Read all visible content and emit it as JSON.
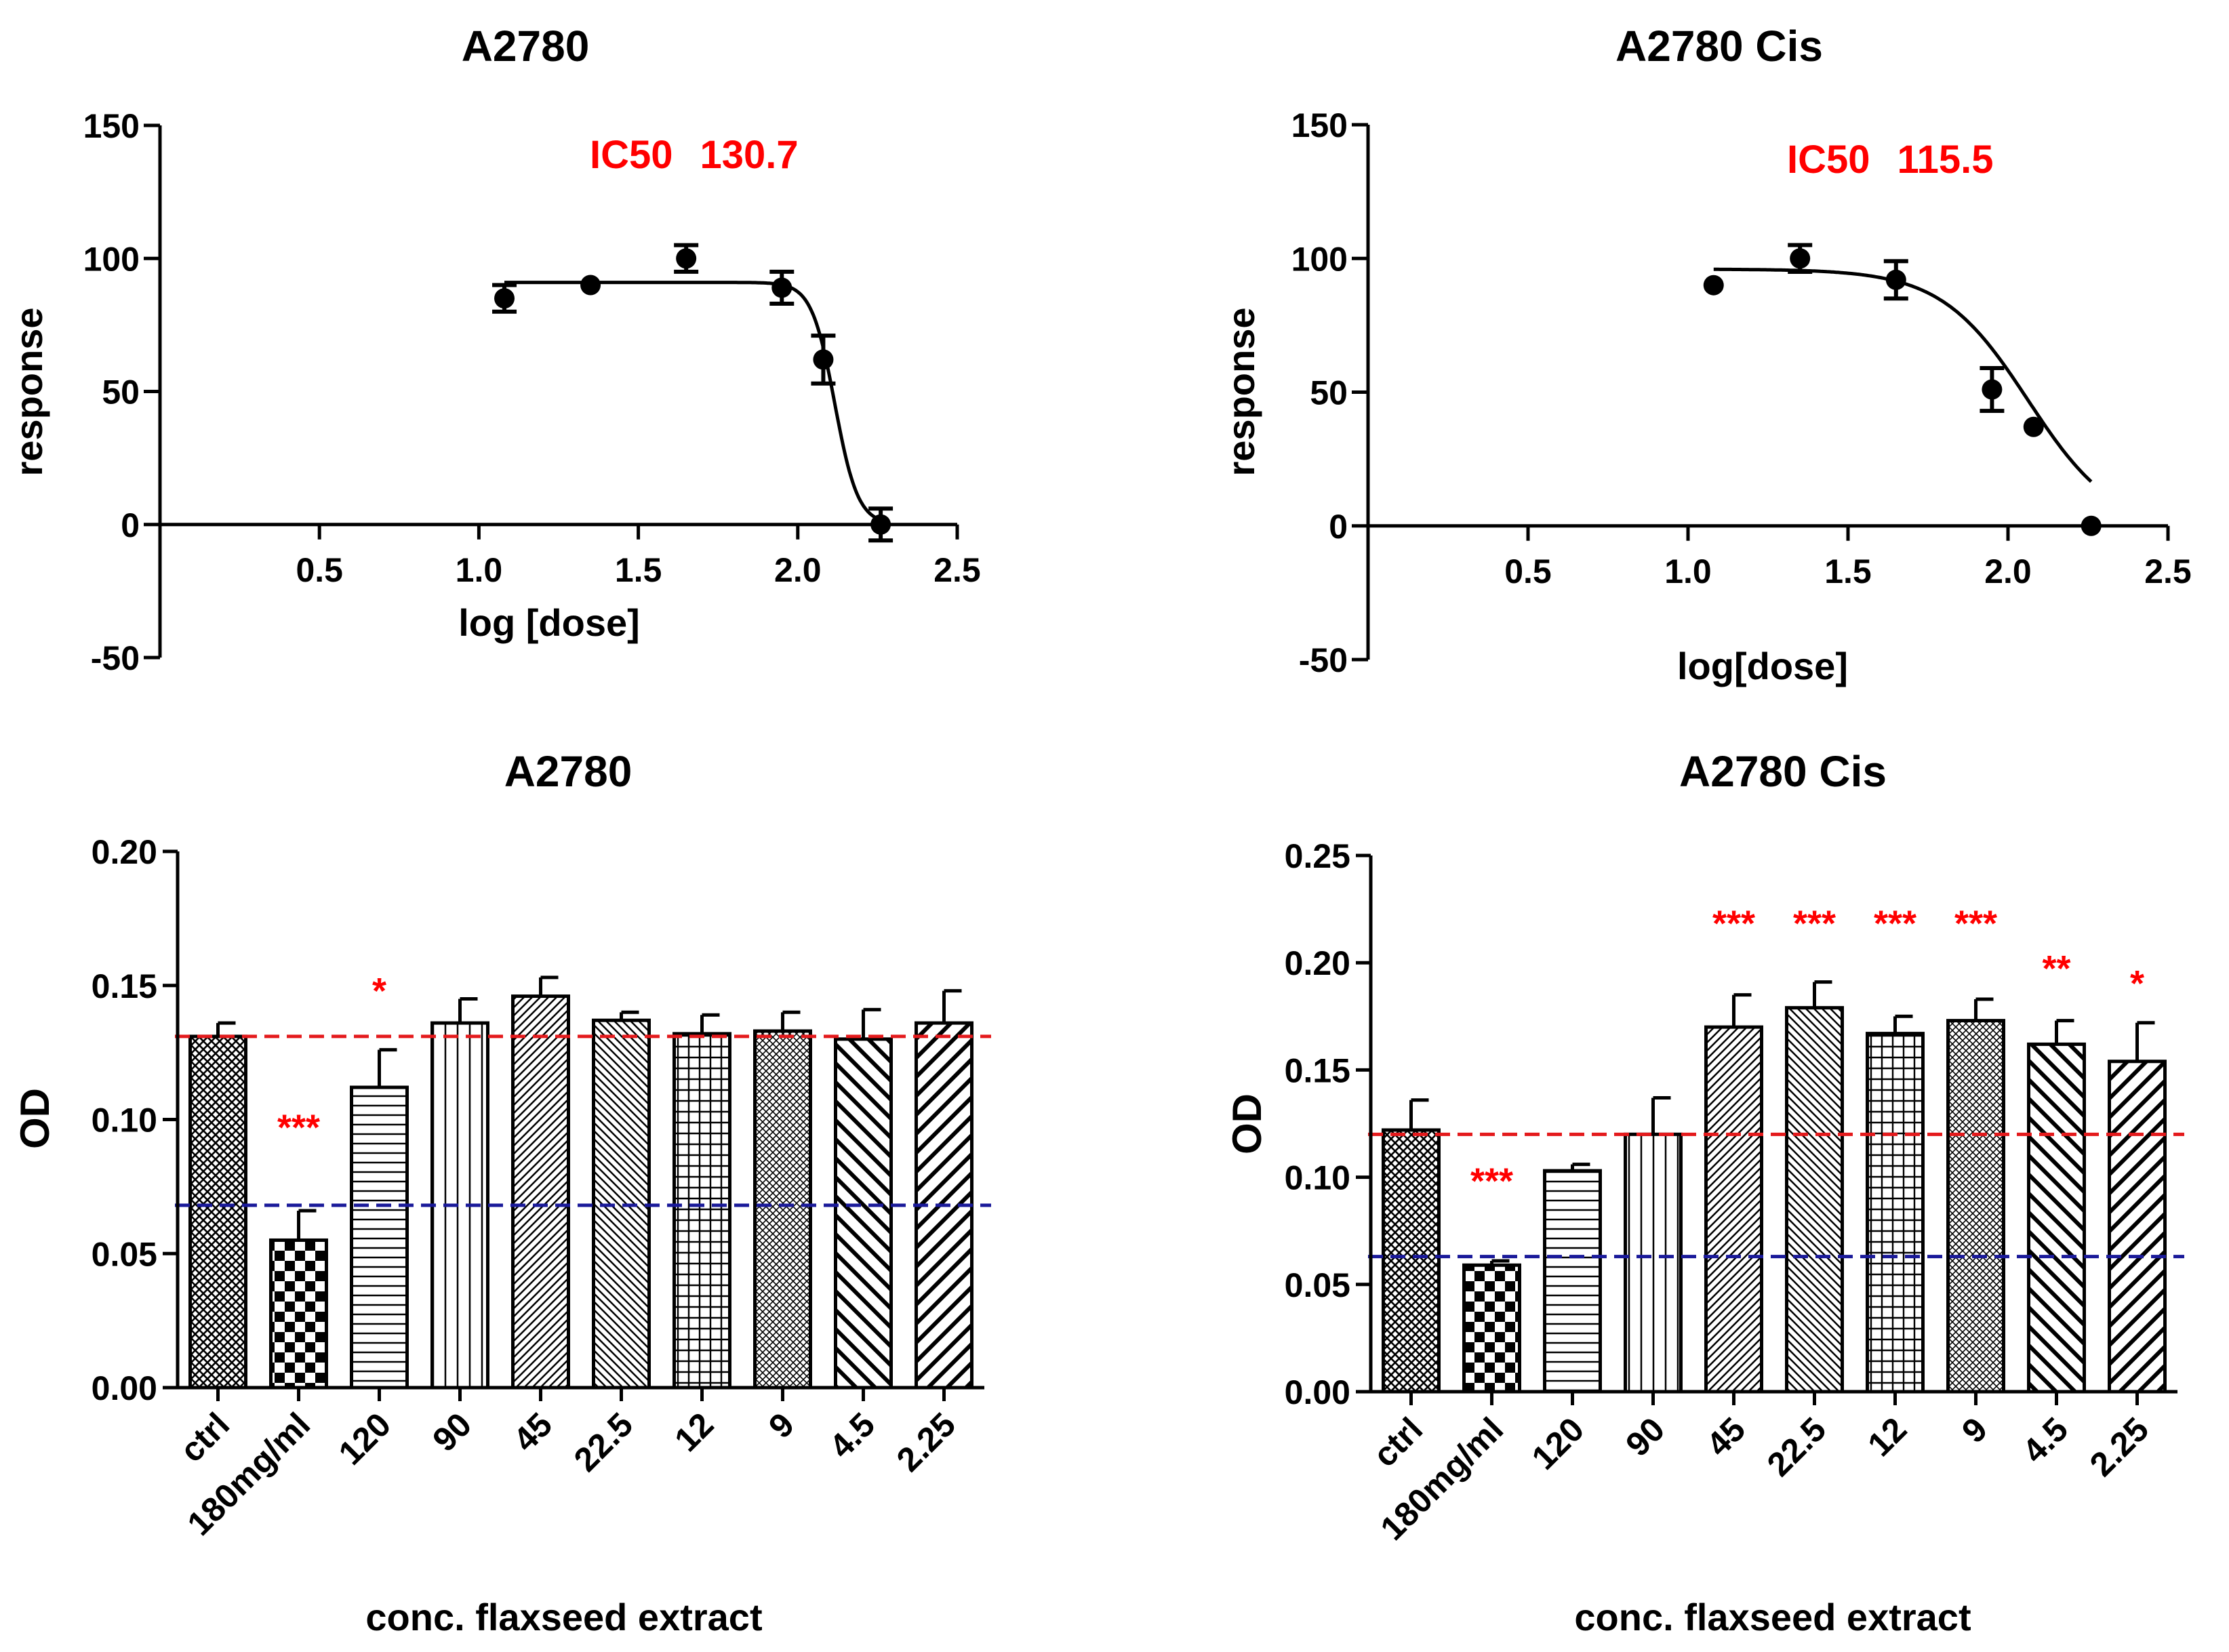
{
  "chart_data": [
    {
      "type": "scatter",
      "title": "A2780",
      "xlabel": "log [dose]",
      "ylabel": "response",
      "xlim": [
        0,
        2.5
      ],
      "ylim": [
        -50,
        150
      ],
      "xticks": [
        0.5,
        1.0,
        1.5,
        2.0,
        2.5
      ],
      "xtick_labels": [
        "0.5",
        "1.0",
        "1.5",
        "2.0",
        "2.5"
      ],
      "yticks": [
        -50,
        0,
        50,
        100,
        150
      ],
      "ytick_labels": [
        "-50",
        "0",
        "50",
        "100",
        "150"
      ],
      "annotation": {
        "label": "IC50",
        "value": "130.7",
        "color": "#ff0000"
      },
      "points": [
        {
          "x": 1.08,
          "y": 85,
          "err": 5
        },
        {
          "x": 1.35,
          "y": 90,
          "err": 0
        },
        {
          "x": 1.65,
          "y": 100,
          "err": 5
        },
        {
          "x": 1.95,
          "y": 89,
          "err": 6
        },
        {
          "x": 2.08,
          "y": 62,
          "err": 9
        },
        {
          "x": 2.26,
          "y": 0,
          "err": 6
        }
      ],
      "fit": {
        "top": 91,
        "bottom": 0,
        "log_ic50": 2.116,
        "hill": 12
      }
    },
    {
      "type": "scatter",
      "title": "A2780 Cis",
      "xlabel": "log[dose]",
      "ylabel": "response",
      "xlim": [
        0,
        2.5
      ],
      "ylim": [
        -50,
        150
      ],
      "xticks": [
        0.5,
        1.0,
        1.5,
        2.0,
        2.5
      ],
      "xtick_labels": [
        "0.5",
        "1.0",
        "1.5",
        "2.0",
        "2.5"
      ],
      "yticks": [
        -50,
        0,
        50,
        100,
        150
      ],
      "ytick_labels": [
        "-50",
        "0",
        "50",
        "100",
        "150"
      ],
      "annotation": {
        "label": "IC50",
        "value": "115.5",
        "color": "#ff0000"
      },
      "points": [
        {
          "x": 1.08,
          "y": 90,
          "err": 0
        },
        {
          "x": 1.35,
          "y": 100,
          "err": 5
        },
        {
          "x": 1.65,
          "y": 92,
          "err": 7
        },
        {
          "x": 1.95,
          "y": 51,
          "err": 8
        },
        {
          "x": 2.08,
          "y": 37,
          "err": 0
        },
        {
          "x": 2.26,
          "y": 0,
          "err": 0
        }
      ],
      "fit": {
        "top": 96,
        "bottom": -2,
        "log_ic50": 2.0626,
        "hill": 3.2
      }
    },
    {
      "type": "bar",
      "title": "A2780",
      "xlabel": "conc. flaxseed extract",
      "ylabel": "OD",
      "ylim": [
        0,
        0.2
      ],
      "yticks": [
        0,
        0.05,
        0.1,
        0.15,
        0.2
      ],
      "ytick_labels": [
        "0.00",
        "0.05",
        "0.10",
        "0.15",
        "0.20"
      ],
      "categories": [
        "ctrl",
        "180mg/ml",
        "120",
        "90",
        "45",
        "22.5",
        "12",
        "9",
        "4.5",
        "2.25"
      ],
      "values": [
        0.131,
        0.055,
        0.112,
        0.136,
        0.146,
        0.137,
        0.132,
        0.133,
        0.13,
        0.136
      ],
      "errors": [
        0.005,
        0.011,
        0.014,
        0.009,
        0.007,
        0.003,
        0.007,
        0.007,
        0.011,
        0.012
      ],
      "significance": [
        "",
        "***",
        "*",
        "",
        "",
        "",
        "",
        "",
        "",
        ""
      ],
      "significance_y": [
        0,
        0.1,
        0.151,
        0,
        0,
        0,
        0,
        0,
        0,
        0
      ],
      "reference_lines": [
        {
          "value": 0.131,
          "color": "#e41a1c"
        },
        {
          "value": 0.068,
          "color": "#1a1a9a"
        }
      ]
    },
    {
      "type": "bar",
      "title": "A2780 Cis",
      "xlabel": "conc. flaxseed extract",
      "ylabel": "OD",
      "ylim": [
        0,
        0.25
      ],
      "yticks": [
        0,
        0.05,
        0.1,
        0.15,
        0.2,
        0.25
      ],
      "ytick_labels": [
        "0.00",
        "0.05",
        "0.10",
        "0.15",
        "0.20",
        "0.25"
      ],
      "categories": [
        "ctrl",
        "180mg/ml",
        "120",
        "90",
        "45",
        "22.5",
        "12",
        "9",
        "4.5",
        "2.25"
      ],
      "values": [
        0.122,
        0.059,
        0.103,
        0.12,
        0.17,
        0.179,
        0.167,
        0.173,
        0.162,
        0.154
      ],
      "errors": [
        0.014,
        0.002,
        0.003,
        0.017,
        0.015,
        0.012,
        0.008,
        0.01,
        0.011,
        0.018
      ],
      "significance": [
        "",
        "***",
        "",
        "",
        "***",
        "***",
        "***",
        "***",
        "**",
        "*"
      ],
      "significance_y": [
        0,
        0.102,
        0,
        0,
        0.222,
        0.222,
        0.222,
        0.222,
        0.201,
        0.194
      ],
      "reference_lines": [
        {
          "value": 0.12,
          "color": "#e41a1c"
        },
        {
          "value": 0.063,
          "color": "#1a1a9a"
        }
      ]
    }
  ]
}
